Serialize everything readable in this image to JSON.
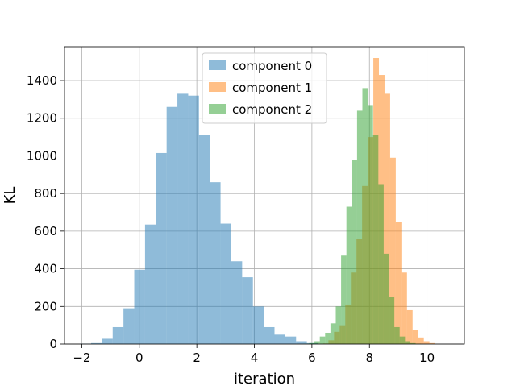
{
  "chart_data": {
    "type": "histogram",
    "title": "",
    "xlabel": "iteration",
    "ylabel": "KL",
    "xlim": [
      -2.6,
      11.3
    ],
    "ylim": [
      0,
      1580
    ],
    "xticks": [
      -2,
      0,
      2,
      4,
      6,
      8,
      10
    ],
    "yticks": [
      0,
      200,
      400,
      600,
      800,
      1000,
      1200,
      1400
    ],
    "grid": true,
    "legend_position": "top-center",
    "series": [
      {
        "name": "component 0",
        "color": "#1f77b4",
        "opacity": 0.5,
        "bin_start": -2.05,
        "bin_width": 0.375,
        "counts": [
          2,
          5,
          28,
          90,
          190,
          395,
          635,
          1015,
          1260,
          1330,
          1320,
          1110,
          860,
          640,
          440,
          355,
          200,
          90,
          50,
          40,
          15,
          5
        ]
      },
      {
        "name": "component 1",
        "color": "#ff7f0e",
        "opacity": 0.5,
        "bin_start": 6.38,
        "bin_width": 0.195,
        "counts": [
          3,
          20,
          65,
          100,
          210,
          380,
          560,
          840,
          1100,
          1520,
          1430,
          1330,
          990,
          650,
          380,
          180,
          75,
          35,
          15,
          5
        ]
      },
      {
        "name": "component 2",
        "color": "#2ca02c",
        "opacity": 0.5,
        "bin_start": 5.72,
        "bin_width": 0.185,
        "counts": [
          2,
          5,
          15,
          40,
          60,
          110,
          200,
          470,
          730,
          980,
          1240,
          1360,
          1270,
          1110,
          850,
          480,
          250,
          90,
          40,
          15,
          5,
          2
        ]
      }
    ]
  }
}
